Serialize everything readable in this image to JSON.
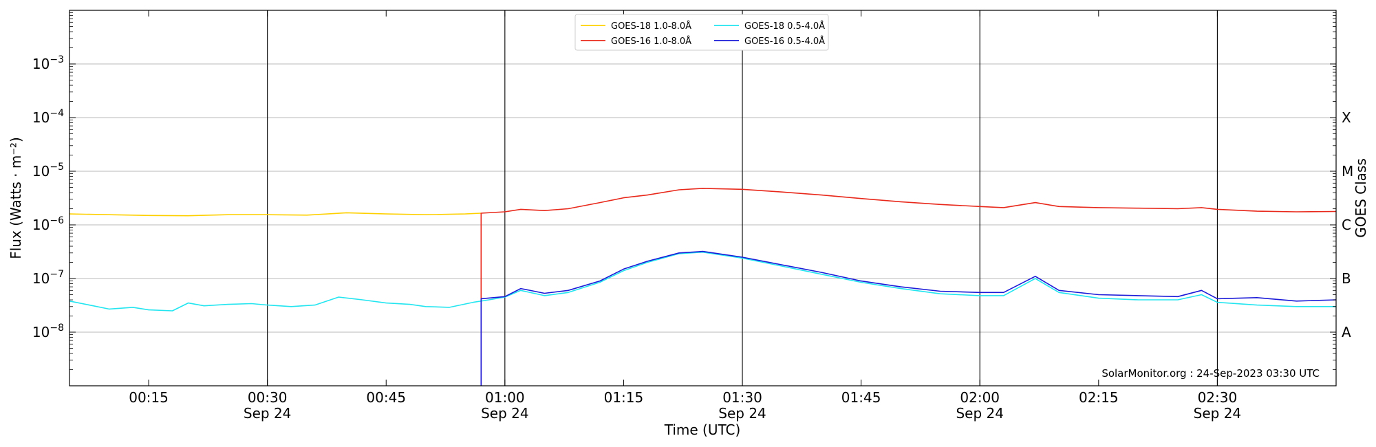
{
  "chart_data": {
    "type": "line",
    "xlabel": "Time (UTC)",
    "ylabel": "Flux (Watts · m⁻²)",
    "right_label": "GOES Class",
    "watermark": "SolarMonitor.org : 24-Sep-2023 03:30 UTC",
    "x_range": [
      "00:05",
      "02:45"
    ],
    "y_range": [
      1e-09,
      0.01
    ],
    "y_scale": "log",
    "grid": "horizontal at major y ticks; vertical lines at date ticks",
    "legend_position": "top-center",
    "x_ticks": [
      {
        "time": "00:15",
        "label": "00:15",
        "date": ""
      },
      {
        "time": "00:30",
        "label": "00:30",
        "date": "Sep 24"
      },
      {
        "time": "00:45",
        "label": "00:45",
        "date": ""
      },
      {
        "time": "01:00",
        "label": "01:00",
        "date": "Sep 24"
      },
      {
        "time": "01:15",
        "label": "01:15",
        "date": ""
      },
      {
        "time": "01:30",
        "label": "01:30",
        "date": "Sep 24"
      },
      {
        "time": "01:45",
        "label": "01:45",
        "date": ""
      },
      {
        "time": "02:00",
        "label": "02:00",
        "date": "Sep 24"
      },
      {
        "time": "02:15",
        "label": "02:15",
        "date": ""
      },
      {
        "time": "02:30",
        "label": "02:30",
        "date": "Sep 24"
      }
    ],
    "y_ticks": [
      {
        "value": 1e-08,
        "base": "10",
        "exp": "−8"
      },
      {
        "value": 1e-07,
        "base": "10",
        "exp": "−7"
      },
      {
        "value": 1e-06,
        "base": "10",
        "exp": "−6"
      },
      {
        "value": 1e-05,
        "base": "10",
        "exp": "−5"
      },
      {
        "value": 0.0001,
        "base": "10",
        "exp": "−4"
      },
      {
        "value": 0.001,
        "base": "10",
        "exp": "−3"
      }
    ],
    "goes_classes": [
      {
        "label": "A",
        "value": 1e-08
      },
      {
        "label": "B",
        "value": 1e-07
      },
      {
        "label": "C",
        "value": 1e-06
      },
      {
        "label": "M",
        "value": 1e-05
      },
      {
        "label": "X",
        "value": 0.0001
      }
    ],
    "series": [
      {
        "name": "GOES-18 1.0-8.0Å",
        "color": "#FFD000",
        "points": [
          [
            "00:05",
            1.6e-06
          ],
          [
            "00:10",
            1.55e-06
          ],
          [
            "00:15",
            1.5e-06
          ],
          [
            "00:20",
            1.48e-06
          ],
          [
            "00:25",
            1.55e-06
          ],
          [
            "00:30",
            1.55e-06
          ],
          [
            "00:35",
            1.52e-06
          ],
          [
            "00:40",
            1.68e-06
          ],
          [
            "00:45",
            1.6e-06
          ],
          [
            "00:50",
            1.55e-06
          ],
          [
            "00:55",
            1.6e-06
          ],
          [
            "00:57",
            1.65e-06
          ]
        ]
      },
      {
        "name": "GOES-16 1.0-8.0Å",
        "color": "#E8281A",
        "points": [
          [
            "00:57",
            1e-09
          ],
          [
            "00:57",
            1.65e-06
          ],
          [
            "01:00",
            1.75e-06
          ],
          [
            "01:02",
            1.95e-06
          ],
          [
            "01:05",
            1.85e-06
          ],
          [
            "01:08",
            2e-06
          ],
          [
            "01:12",
            2.6e-06
          ],
          [
            "01:15",
            3.2e-06
          ],
          [
            "01:18",
            3.6e-06
          ],
          [
            "01:22",
            4.5e-06
          ],
          [
            "01:25",
            4.8e-06
          ],
          [
            "01:30",
            4.6e-06
          ],
          [
            "01:35",
            4.1e-06
          ],
          [
            "01:40",
            3.6e-06
          ],
          [
            "01:45",
            3.1e-06
          ],
          [
            "01:50",
            2.7e-06
          ],
          [
            "01:55",
            2.4e-06
          ],
          [
            "02:00",
            2.2e-06
          ],
          [
            "02:03",
            2.1e-06
          ],
          [
            "02:07",
            2.6e-06
          ],
          [
            "02:10",
            2.2e-06
          ],
          [
            "02:15",
            2.1e-06
          ],
          [
            "02:20",
            2.05e-06
          ],
          [
            "02:25",
            2e-06
          ],
          [
            "02:28",
            2.1e-06
          ],
          [
            "02:30",
            1.95e-06
          ],
          [
            "02:35",
            1.8e-06
          ],
          [
            "02:40",
            1.75e-06
          ],
          [
            "02:45",
            1.78e-06
          ]
        ]
      },
      {
        "name": "GOES-18 0.5-4.0Å",
        "color": "#22E5F0",
        "points": [
          [
            "00:05",
            3.8e-08
          ],
          [
            "00:08",
            3.1e-08
          ],
          [
            "00:10",
            2.7e-08
          ],
          [
            "00:13",
            2.9e-08
          ],
          [
            "00:15",
            2.6e-08
          ],
          [
            "00:18",
            2.5e-08
          ],
          [
            "00:20",
            3.5e-08
          ],
          [
            "00:22",
            3.1e-08
          ],
          [
            "00:25",
            3.3e-08
          ],
          [
            "00:28",
            3.4e-08
          ],
          [
            "00:30",
            3.2e-08
          ],
          [
            "00:33",
            3e-08
          ],
          [
            "00:36",
            3.2e-08
          ],
          [
            "00:39",
            4.5e-08
          ],
          [
            "00:42",
            4e-08
          ],
          [
            "00:45",
            3.5e-08
          ],
          [
            "00:48",
            3.3e-08
          ],
          [
            "00:50",
            3e-08
          ],
          [
            "00:53",
            2.9e-08
          ],
          [
            "00:56",
            3.6e-08
          ],
          [
            "00:58",
            4e-08
          ],
          [
            "01:00",
            4.5e-08
          ],
          [
            "01:02",
            6e-08
          ],
          [
            "01:05",
            4.8e-08
          ],
          [
            "01:08",
            5.5e-08
          ],
          [
            "01:12",
            8.5e-08
          ],
          [
            "01:15",
            1.4e-07
          ],
          [
            "01:18",
            2e-07
          ],
          [
            "01:22",
            2.9e-07
          ],
          [
            "01:25",
            3.1e-07
          ],
          [
            "01:30",
            2.4e-07
          ],
          [
            "01:35",
            1.7e-07
          ],
          [
            "01:40",
            1.2e-07
          ],
          [
            "01:45",
            8.5e-08
          ],
          [
            "01:50",
            6.5e-08
          ],
          [
            "01:55",
            5.2e-08
          ],
          [
            "02:00",
            4.8e-08
          ],
          [
            "02:03",
            4.8e-08
          ],
          [
            "02:07",
            1e-07
          ],
          [
            "02:10",
            5.5e-08
          ],
          [
            "02:15",
            4.3e-08
          ],
          [
            "02:20",
            4e-08
          ],
          [
            "02:25",
            4e-08
          ],
          [
            "02:28",
            5e-08
          ],
          [
            "02:30",
            3.6e-08
          ],
          [
            "02:35",
            3.2e-08
          ],
          [
            "02:40",
            3e-08
          ],
          [
            "02:45",
            3e-08
          ]
        ]
      },
      {
        "name": "GOES-16 0.5-4.0Å",
        "color": "#1A1AD8",
        "points": [
          [
            "00:57",
            1e-09
          ],
          [
            "00:57",
            4.2e-08
          ],
          [
            "01:00",
            4.6e-08
          ],
          [
            "01:02",
            6.5e-08
          ],
          [
            "01:05",
            5.3e-08
          ],
          [
            "01:08",
            6e-08
          ],
          [
            "01:12",
            9e-08
          ],
          [
            "01:15",
            1.5e-07
          ],
          [
            "01:18",
            2.1e-07
          ],
          [
            "01:22",
            3e-07
          ],
          [
            "01:25",
            3.2e-07
          ],
          [
            "01:30",
            2.5e-07
          ],
          [
            "01:35",
            1.8e-07
          ],
          [
            "01:40",
            1.3e-07
          ],
          [
            "01:45",
            9e-08
          ],
          [
            "01:50",
            7e-08
          ],
          [
            "01:55",
            5.8e-08
          ],
          [
            "02:00",
            5.5e-08
          ],
          [
            "02:03",
            5.5e-08
          ],
          [
            "02:07",
            1.1e-07
          ],
          [
            "02:10",
            6e-08
          ],
          [
            "02:15",
            5e-08
          ],
          [
            "02:20",
            4.8e-08
          ],
          [
            "02:25",
            4.6e-08
          ],
          [
            "02:28",
            6e-08
          ],
          [
            "02:30",
            4.2e-08
          ],
          [
            "02:35",
            4.4e-08
          ],
          [
            "02:40",
            3.8e-08
          ],
          [
            "02:45",
            4e-08
          ]
        ]
      }
    ],
    "legend": [
      {
        "label": "GOES-18 1.0-8.0Å",
        "color": "#FFD000"
      },
      {
        "label": "GOES-16 1.0-8.0Å",
        "color": "#E8281A"
      },
      {
        "label": "GOES-18 0.5-4.0Å",
        "color": "#22E5F0"
      },
      {
        "label": "GOES-16 0.5-4.0Å",
        "color": "#1A1AD8"
      }
    ]
  }
}
